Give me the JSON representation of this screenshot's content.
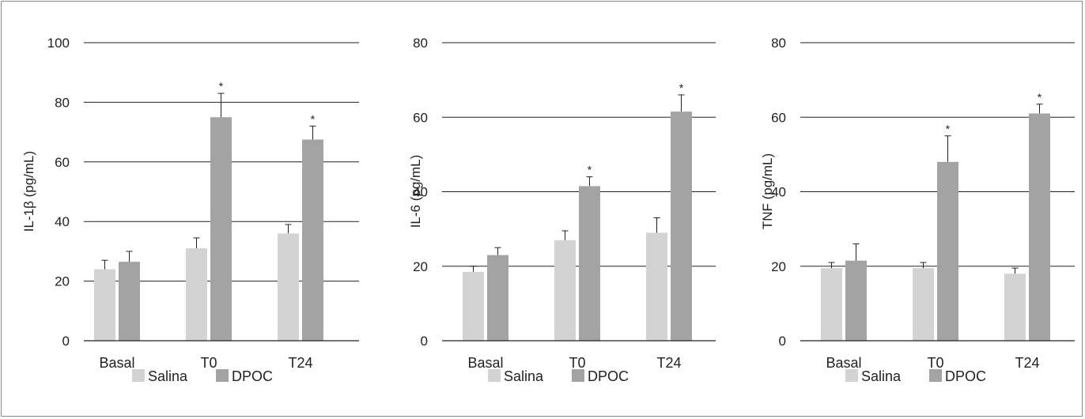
{
  "colors": {
    "salina": "#d3d3d3",
    "dpoc": "#a3a3a3",
    "axis": "#222222",
    "grid": "#222222"
  },
  "legend": {
    "salina_label": "Salina",
    "dpoc_label": "DPOC"
  },
  "chart_data": [
    {
      "type": "bar",
      "ylabel": "IL-1β (pg/mL)",
      "ylim": [
        0,
        100
      ],
      "yticks": [
        0,
        20,
        40,
        60,
        80,
        100
      ],
      "grid": true,
      "legend": "bottom",
      "categories": [
        "Basal",
        "T0",
        "T24"
      ],
      "series": [
        {
          "name": "Salina",
          "values": [
            24,
            31,
            36
          ],
          "errors": [
            3,
            3.5,
            3
          ]
        },
        {
          "name": "DPOC",
          "values": [
            26.5,
            75,
            67.5
          ],
          "errors": [
            3.5,
            8,
            4.5
          ]
        }
      ],
      "annotations": [
        {
          "category": "T0",
          "series": "DPOC",
          "text": "*"
        },
        {
          "category": "T24",
          "series": "DPOC",
          "text": "*"
        }
      ]
    },
    {
      "type": "bar",
      "ylabel": "IL-6 (pg/mL)",
      "ylim": [
        0,
        80
      ],
      "yticks": [
        0,
        20,
        40,
        60,
        80
      ],
      "grid": true,
      "legend": "bottom",
      "categories": [
        "Basal",
        "T0",
        "T24"
      ],
      "series": [
        {
          "name": "Salina",
          "values": [
            18.5,
            27,
            29
          ],
          "errors": [
            1.5,
            2.5,
            4
          ]
        },
        {
          "name": "DPOC",
          "values": [
            23,
            41.5,
            61.5
          ],
          "errors": [
            2,
            2.5,
            4.5
          ]
        }
      ],
      "annotations": [
        {
          "category": "T0",
          "series": "DPOC",
          "text": "*"
        },
        {
          "category": "T24",
          "series": "DPOC",
          "text": "*"
        }
      ]
    },
    {
      "type": "bar",
      "ylabel": "TNF (pg/mL)",
      "ylim": [
        0,
        80
      ],
      "yticks": [
        0,
        20,
        40,
        60,
        80
      ],
      "grid": true,
      "legend": "bottom",
      "categories": [
        "Basal",
        "T0",
        "T24"
      ],
      "series": [
        {
          "name": "Salina",
          "values": [
            19.5,
            19.5,
            18
          ],
          "errors": [
            1.5,
            1.5,
            1.5
          ]
        },
        {
          "name": "DPOC",
          "values": [
            21.5,
            48,
            61
          ],
          "errors": [
            4.5,
            7,
            2.5
          ]
        }
      ],
      "annotations": [
        {
          "category": "T0",
          "series": "DPOC",
          "text": "*"
        },
        {
          "category": "T24",
          "series": "DPOC",
          "text": "*"
        }
      ]
    }
  ]
}
